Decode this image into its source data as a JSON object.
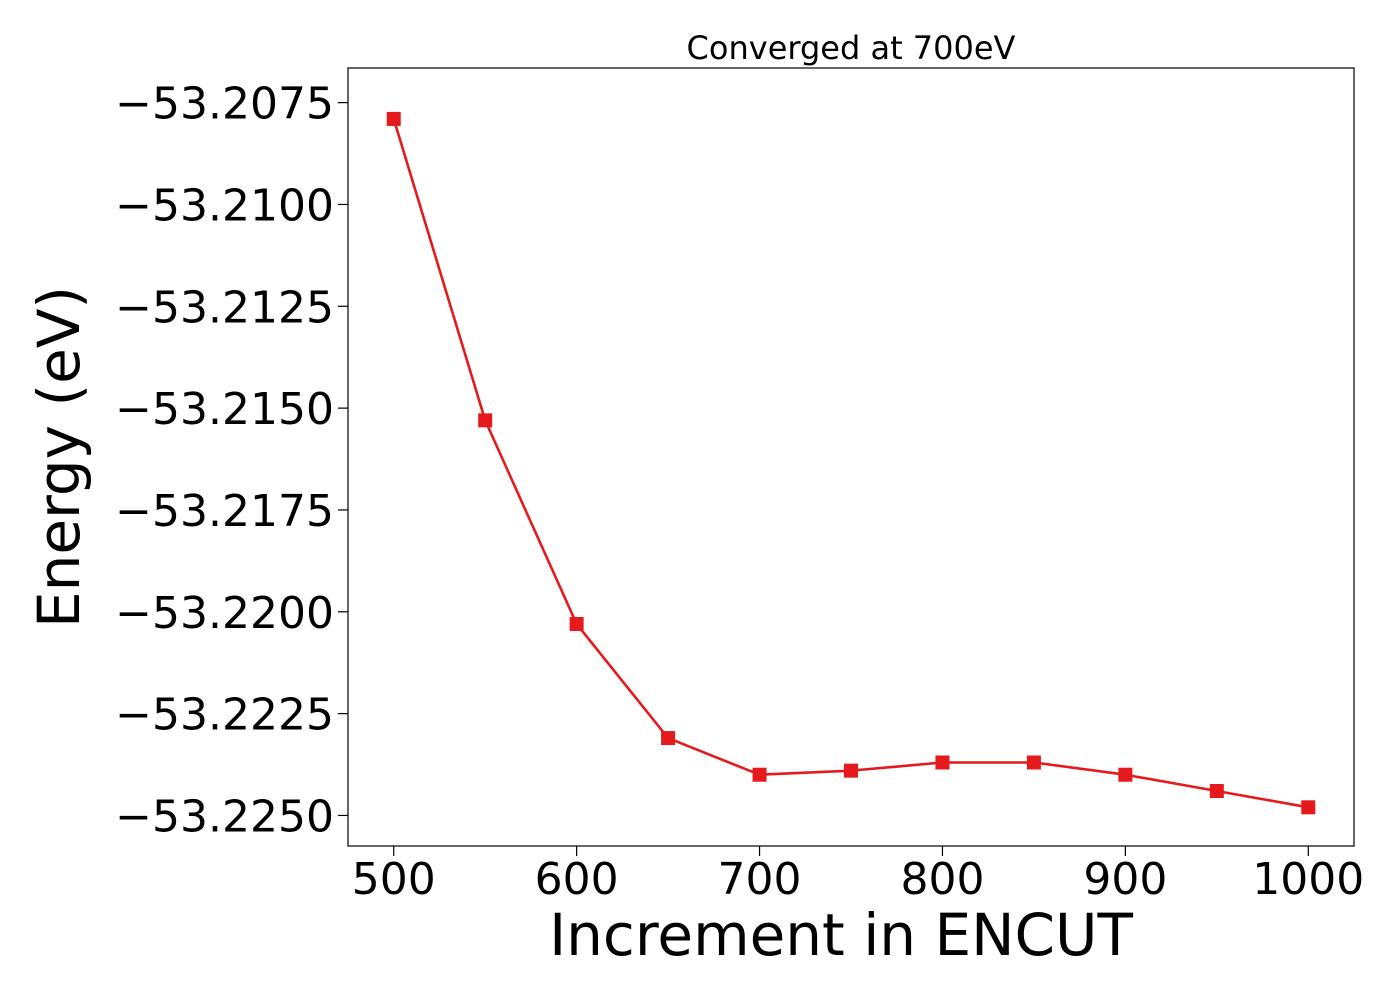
{
  "chart_data": {
    "type": "line",
    "title": "Converged at 700eV",
    "xlabel": "Increment in ENCUT",
    "ylabel": "Energy (eV)",
    "x": [
      500,
      550,
      600,
      650,
      700,
      750,
      800,
      850,
      900,
      950,
      1000
    ],
    "series": [
      {
        "values": [
          -53.2079,
          -53.2153,
          -53.2203,
          -53.2231,
          -53.224,
          -53.2239,
          -53.2237,
          -53.2237,
          -53.224,
          -53.2244,
          -53.2248
        ],
        "color": "#e41a1c",
        "marker": "square"
      }
    ],
    "xlim": [
      475,
      1025
    ],
    "ylim": [
      -53.22575,
      -53.20665
    ],
    "xticks": [
      500,
      600,
      700,
      800,
      900,
      1000
    ],
    "xtick_labels": [
      "500",
      "600",
      "700",
      "800",
      "900",
      "1000"
    ],
    "yticks": [
      -53.2075,
      -53.21,
      -53.2125,
      -53.215,
      -53.2175,
      -53.22,
      -53.2225,
      -53.225
    ],
    "ytick_labels": [
      "−53.2075",
      "−53.2100",
      "−53.2125",
      "−53.2150",
      "−53.2175",
      "−53.2200",
      "−53.2225",
      "−53.2250"
    ],
    "grid": false,
    "legend": "none"
  }
}
